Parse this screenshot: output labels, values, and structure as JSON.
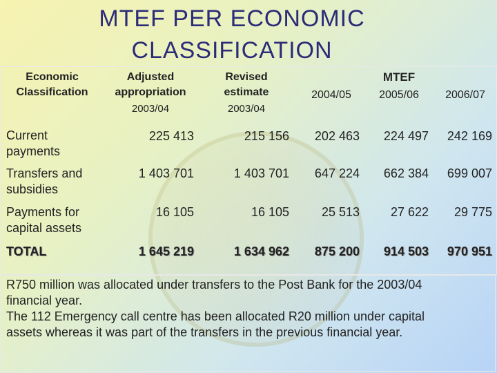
{
  "title_line1": "MTEF PER ECONOMIC",
  "title_line2": "CLASSIFICATION",
  "headers": {
    "economic_classification_line1": "Economic",
    "economic_classification_line2": "Classification",
    "adjusted_line1": "Adjusted",
    "adjusted_line2": "appropriation",
    "adjusted_line3": "2003/04",
    "revised_line1": "Revised",
    "revised_line2": "estimate",
    "revised_line3": "2003/04",
    "mtef": "MTEF",
    "y2004": "2004/05",
    "y2005": "2005/06",
    "y2006": "2006/07"
  },
  "rows": [
    {
      "label_line1": "Current",
      "label_line2": "payments",
      "adjusted": "225 413",
      "revised": "215 156",
      "y2004": "202 463",
      "y2005": "224 497",
      "y2006": "242 169"
    },
    {
      "label_line1": "Transfers and",
      "label_line2": "subsidies",
      "adjusted": "1 403 701",
      "revised": "1 403 701",
      "y2004": "647 224",
      "y2005": "662 384",
      "y2006": "699 007"
    },
    {
      "label_line1": "Payments for",
      "label_line2": "capital assets",
      "adjusted": "16 105",
      "revised": "16 105",
      "y2004": "25 513",
      "y2005": "27 622",
      "y2006": "29 775"
    },
    {
      "label_line1": "TOTAL",
      "adjusted": "1 645 219",
      "revised": "1 634 962",
      "y2004": "875 200",
      "y2005": "914 503",
      "y2006": "970 951"
    }
  ],
  "notes": {
    "line1": "R750 million was allocated under transfers to the Post Bank for the 2003/04",
    "line2": "financial year.",
    "line3": "The 112 Emergency call centre has been allocated R20 million under capital",
    "line4": "assets whereas it was part of the transfers in the previous financial year."
  }
}
